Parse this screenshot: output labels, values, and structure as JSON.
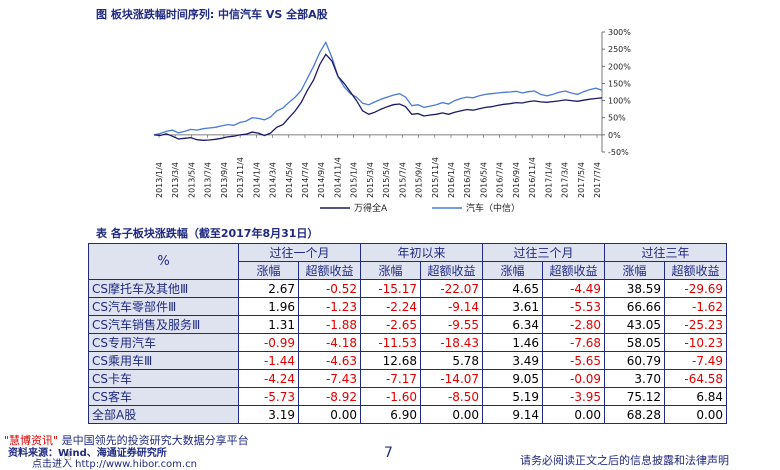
{
  "chart_title": "图 板块涨跌幅时间序列: 中信汽车 VS 全部A股",
  "chart_data": {
    "type": "line",
    "y_ticks": [
      "300%",
      "250%",
      "200%",
      "150%",
      "100%",
      "50%",
      "0%",
      "-50%"
    ],
    "ylim": [
      -50,
      300
    ],
    "x_ticks": [
      "2013/1/4",
      "2013/3/4",
      "2013/5/4",
      "2013/7/4",
      "2013/9/4",
      "2013/11/4",
      "2014/1/4",
      "2014/3/4",
      "2014/5/4",
      "2014/7/4",
      "2014/9/4",
      "2014/11/4",
      "2015/1/4",
      "2015/3/4",
      "2015/5/4",
      "2015/7/4",
      "2015/9/4",
      "2015/11/4",
      "2016/1/4",
      "2016/3/4",
      "2016/5/4",
      "2016/7/4",
      "2016/9/4",
      "2016/11/4",
      "2017/1/4",
      "2017/3/4",
      "2017/5/4",
      "2017/7/4"
    ],
    "series": [
      {
        "name": "万得全A",
        "color": "#1a1a66",
        "values": [
          0,
          -2,
          3,
          -4,
          -12,
          -10,
          -8,
          -14,
          -16,
          -15,
          -13,
          -10,
          -6,
          -4,
          0,
          2,
          8,
          5,
          -2,
          5,
          22,
          30,
          50,
          70,
          95,
          130,
          160,
          205,
          235,
          215,
          170,
          150,
          125,
          100,
          70,
          60,
          66,
          75,
          82,
          88,
          90,
          82,
          60,
          62,
          55,
          58,
          60,
          64,
          60,
          66,
          70,
          74,
          72,
          76,
          80,
          82,
          86,
          89,
          91,
          94,
          93,
          97,
          99,
          96,
          95,
          97,
          99,
          102,
          100,
          98,
          101,
          104,
          106,
          108
        ]
      },
      {
        "name": "汽车（中信）",
        "color": "#4a7bd8",
        "values": [
          0,
          4,
          10,
          14,
          6,
          10,
          16,
          14,
          18,
          20,
          22,
          26,
          30,
          28,
          36,
          40,
          50,
          48,
          44,
          52,
          70,
          78,
          95,
          110,
          130,
          165,
          200,
          240,
          270,
          225,
          170,
          140,
          120,
          110,
          92,
          88,
          96,
          104,
          110,
          116,
          120,
          110,
          85,
          88,
          80,
          84,
          88,
          94,
          90,
          100,
          106,
          110,
          108,
          114,
          118,
          120,
          122,
          124,
          125,
          127,
          122,
          126,
          128,
          118,
          114,
          118,
          124,
          128,
          122,
          118,
          126,
          132,
          136,
          130
        ]
      }
    ]
  },
  "table_title": "表 各子板块涨跌幅（截至2017年8月31日）",
  "table": {
    "corner": "%",
    "groups": [
      "过往一个月",
      "年初以来",
      "过往三个月",
      "过往三年"
    ],
    "subheaders": [
      "涨幅",
      "超额收益",
      "涨幅",
      "超额收益",
      "涨幅",
      "超额收益",
      "涨幅",
      "超额收益"
    ],
    "rows": [
      {
        "name": "CS摩托车及其他Ⅲ",
        "values": [
          "2.67",
          "-0.52",
          "-15.17",
          "-22.07",
          "4.65",
          "-4.49",
          "38.59",
          "-29.69"
        ]
      },
      {
        "name": "CS汽车零部件Ⅲ",
        "values": [
          "1.96",
          "-1.23",
          "-2.24",
          "-9.14",
          "3.61",
          "-5.53",
          "66.66",
          "-1.62"
        ]
      },
      {
        "name": "CS汽车销售及服务Ⅲ",
        "values": [
          "1.31",
          "-1.88",
          "-2.65",
          "-9.55",
          "6.34",
          "-2.80",
          "43.05",
          "-25.23"
        ]
      },
      {
        "name": "CS专用汽车",
        "values": [
          "-0.99",
          "-4.18",
          "-11.53",
          "-18.43",
          "1.46",
          "-7.68",
          "58.05",
          "-10.23"
        ]
      },
      {
        "name": "CS乘用车Ⅲ",
        "values": [
          "-1.44",
          "-4.63",
          "12.68",
          "5.78",
          "3.49",
          "-5.65",
          "60.79",
          "-7.49"
        ]
      },
      {
        "name": "CS卡车",
        "values": [
          "-4.24",
          "-7.43",
          "-7.17",
          "-14.07",
          "9.05",
          "-0.09",
          "3.70",
          "-64.58"
        ]
      },
      {
        "name": "CS客车",
        "values": [
          "-5.73",
          "-8.92",
          "-1.60",
          "-8.50",
          "5.19",
          "-3.95",
          "75.12",
          "6.84"
        ]
      },
      {
        "name": "全部A股",
        "values": [
          "3.19",
          "0.00",
          "6.90",
          "0.00",
          "9.14",
          "0.00",
          "68.28",
          "0.00"
        ]
      }
    ]
  },
  "footer": {
    "page_number": "7",
    "notice": "请务必阅读正文之后的信息披露和法律声明",
    "promo_brand": "\"慧博资讯\"",
    "promo_text": "是中国领先的投资研究大数据分享平台",
    "source": "资料来源：Wind、海通证券研究所",
    "link": "点击进入 http://www.hibor.com.cn"
  }
}
